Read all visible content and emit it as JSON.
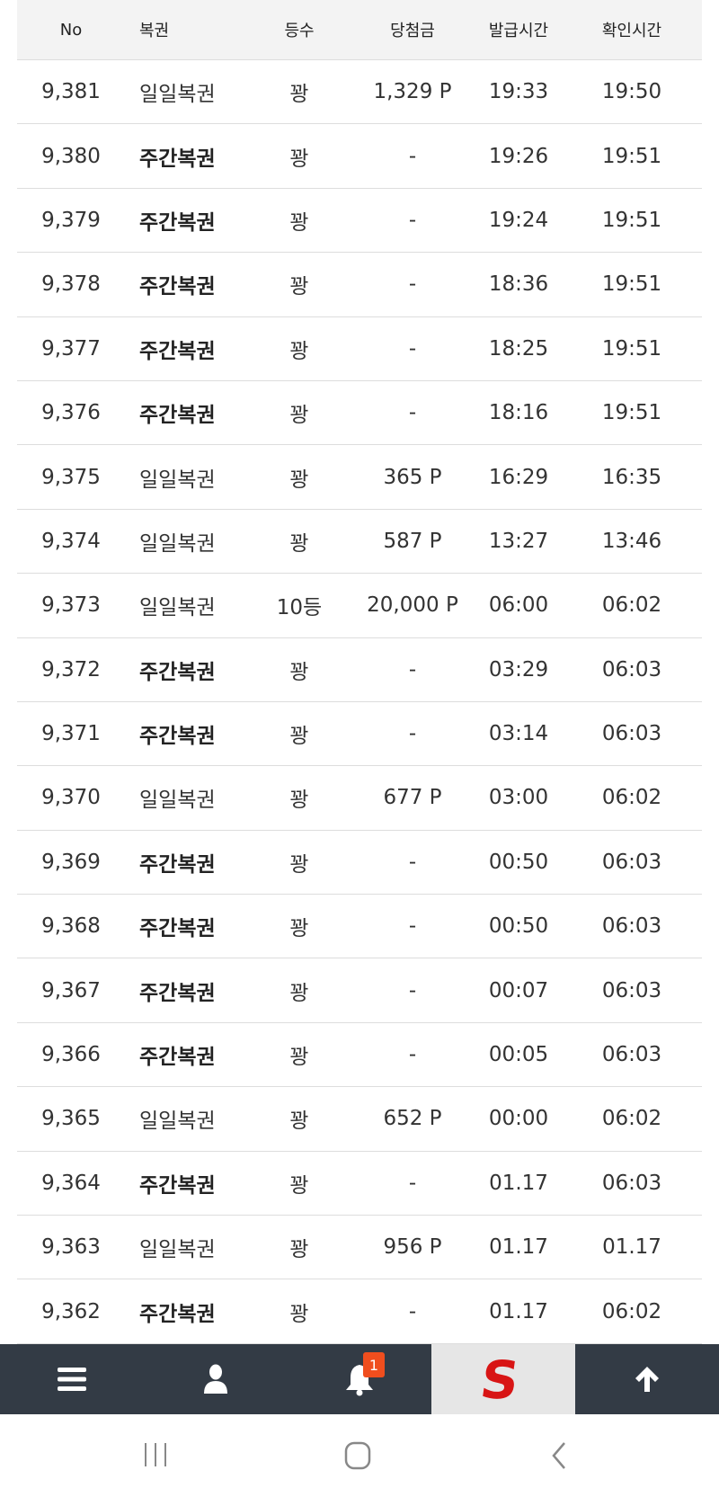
{
  "table": {
    "headers": [
      "No",
      "복권",
      "등수",
      "당첨금",
      "발급시간",
      "확인시간"
    ],
    "rows": [
      {
        "no": "9,381",
        "type": "일일복권",
        "bold": false,
        "rank": "꽝",
        "prize": "1,329 P",
        "issued": "19:33",
        "checked": "19:50"
      },
      {
        "no": "9,380",
        "type": "주간복권",
        "bold": true,
        "rank": "꽝",
        "prize": "-",
        "issued": "19:26",
        "checked": "19:51"
      },
      {
        "no": "9,379",
        "type": "주간복권",
        "bold": true,
        "rank": "꽝",
        "prize": "-",
        "issued": "19:24",
        "checked": "19:51"
      },
      {
        "no": "9,378",
        "type": "주간복권",
        "bold": true,
        "rank": "꽝",
        "prize": "-",
        "issued": "18:36",
        "checked": "19:51"
      },
      {
        "no": "9,377",
        "type": "주간복권",
        "bold": true,
        "rank": "꽝",
        "prize": "-",
        "issued": "18:25",
        "checked": "19:51"
      },
      {
        "no": "9,376",
        "type": "주간복권",
        "bold": true,
        "rank": "꽝",
        "prize": "-",
        "issued": "18:16",
        "checked": "19:51"
      },
      {
        "no": "9,375",
        "type": "일일복권",
        "bold": false,
        "rank": "꽝",
        "prize": "365 P",
        "issued": "16:29",
        "checked": "16:35"
      },
      {
        "no": "9,374",
        "type": "일일복권",
        "bold": false,
        "rank": "꽝",
        "prize": "587 P",
        "issued": "13:27",
        "checked": "13:46"
      },
      {
        "no": "9,373",
        "type": "일일복권",
        "bold": false,
        "rank": "10등",
        "prize": "20,000 P",
        "issued": "06:00",
        "checked": "06:02"
      },
      {
        "no": "9,372",
        "type": "주간복권",
        "bold": true,
        "rank": "꽝",
        "prize": "-",
        "issued": "03:29",
        "checked": "06:03"
      },
      {
        "no": "9,371",
        "type": "주간복권",
        "bold": true,
        "rank": "꽝",
        "prize": "-",
        "issued": "03:14",
        "checked": "06:03"
      },
      {
        "no": "9,370",
        "type": "일일복권",
        "bold": false,
        "rank": "꽝",
        "prize": "677 P",
        "issued": "03:00",
        "checked": "06:02"
      },
      {
        "no": "9,369",
        "type": "주간복권",
        "bold": true,
        "rank": "꽝",
        "prize": "-",
        "issued": "00:50",
        "checked": "06:03"
      },
      {
        "no": "9,368",
        "type": "주간복권",
        "bold": true,
        "rank": "꽝",
        "prize": "-",
        "issued": "00:50",
        "checked": "06:03"
      },
      {
        "no": "9,367",
        "type": "주간복권",
        "bold": true,
        "rank": "꽝",
        "prize": "-",
        "issued": "00:07",
        "checked": "06:03"
      },
      {
        "no": "9,366",
        "type": "주간복권",
        "bold": true,
        "rank": "꽝",
        "prize": "-",
        "issued": "00:05",
        "checked": "06:03"
      },
      {
        "no": "9,365",
        "type": "일일복권",
        "bold": false,
        "rank": "꽝",
        "prize": "652 P",
        "issued": "00:00",
        "checked": "06:02"
      },
      {
        "no": "9,364",
        "type": "주간복권",
        "bold": true,
        "rank": "꽝",
        "prize": "-",
        "issued": "01.17",
        "checked": "06:03"
      },
      {
        "no": "9,363",
        "type": "일일복권",
        "bold": false,
        "rank": "꽝",
        "prize": "956 P",
        "issued": "01.17",
        "checked": "01.17"
      },
      {
        "no": "9,362",
        "type": "주간복권",
        "bold": true,
        "rank": "꽝",
        "prize": "-",
        "issued": "01.17",
        "checked": "06:02"
      }
    ]
  },
  "nav": {
    "items": [
      "menu-icon",
      "user-icon",
      "bell-icon",
      "logo",
      "arrow-up-icon"
    ],
    "notification_count": "1",
    "logo_letter": "S",
    "nav_bg": "#333b45",
    "logo_color": "#d81515",
    "badge_color": "#f04e1e"
  },
  "system_nav": [
    "recent-apps-icon",
    "home-icon",
    "back-icon"
  ]
}
